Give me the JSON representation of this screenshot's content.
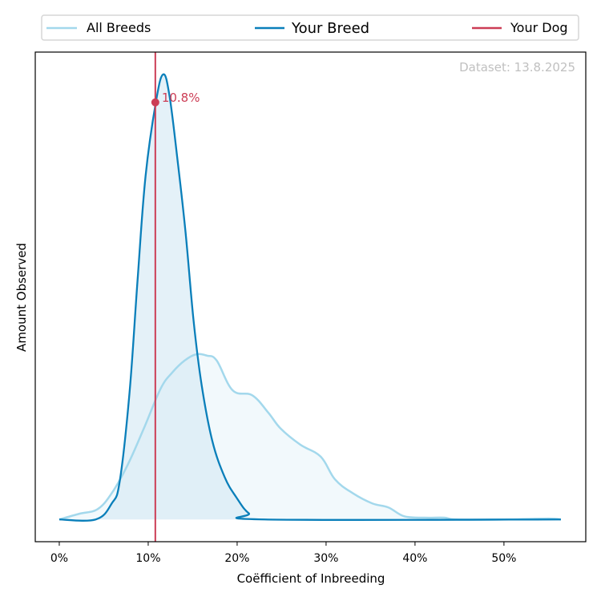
{
  "chart_data": {
    "type": "area",
    "title": "",
    "xlabel": "Coëfficient of Inbreeding",
    "ylabel": "Amount Observed",
    "xlim": [
      -2.7,
      59.2
    ],
    "ylim": [
      -0.05,
      1.05
    ],
    "x_ticks": [
      0,
      10,
      20,
      30,
      40,
      50
    ],
    "x_tick_labels": [
      "0%",
      "10%",
      "20%",
      "30%",
      "40%",
      "50%"
    ],
    "y_ticks_shown": false,
    "grid": false,
    "legend_position": "top (above plot, outside)",
    "annotation": "Dataset: 13.8.2025",
    "legend": [
      {
        "name": "All Breeds",
        "color": "#a3d8ec"
      },
      {
        "name": "Your Breed",
        "color": "#0a7fba"
      },
      {
        "name": "Your Dog",
        "color": "#cc3d55"
      }
    ],
    "series": [
      {
        "name": "All Breeds",
        "color": "#a3d8ec",
        "fill": "#eef7fb",
        "x": [
          0,
          2.3,
          4.3,
          5.9,
          7.7,
          9.5,
          11.4,
          12.7,
          14.1,
          15.4,
          16.6,
          17.7,
          19.5,
          21.7,
          23.5,
          24.9,
          27.1,
          29.4,
          31.0,
          33.0,
          35.2,
          37.0,
          38.8,
          41.1,
          43.3,
          44.7,
          50.0,
          55.0,
          56.4
        ],
        "values": [
          0,
          0.013,
          0.023,
          0.059,
          0.123,
          0.204,
          0.294,
          0.33,
          0.357,
          0.371,
          0.368,
          0.357,
          0.29,
          0.279,
          0.24,
          0.204,
          0.168,
          0.141,
          0.09,
          0.059,
          0.036,
          0.027,
          0.007,
          0.004,
          0.004,
          0,
          0,
          0.002,
          0
        ]
      },
      {
        "name": "Your Breed",
        "color": "#0a7fba",
        "fill": "#d8ebf5",
        "x": [
          0,
          4.1,
          5.9,
          6.8,
          7.9,
          8.8,
          9.7,
          10.9,
          11.7,
          12.4,
          13.3,
          14.2,
          15.1,
          16.0,
          17.2,
          18.6,
          19.9,
          21.3,
          23.1,
          56.4
        ],
        "values": [
          0,
          0,
          0.036,
          0.086,
          0.285,
          0.537,
          0.771,
          0.942,
          1.0,
          0.951,
          0.807,
          0.645,
          0.447,
          0.303,
          0.177,
          0.095,
          0.05,
          0.014,
          0,
          0
        ]
      }
    ],
    "your_dog": {
      "name": "Your Dog",
      "color": "#cc3d55",
      "x": 10.8,
      "y": 0.937,
      "label": "10.8%"
    }
  }
}
